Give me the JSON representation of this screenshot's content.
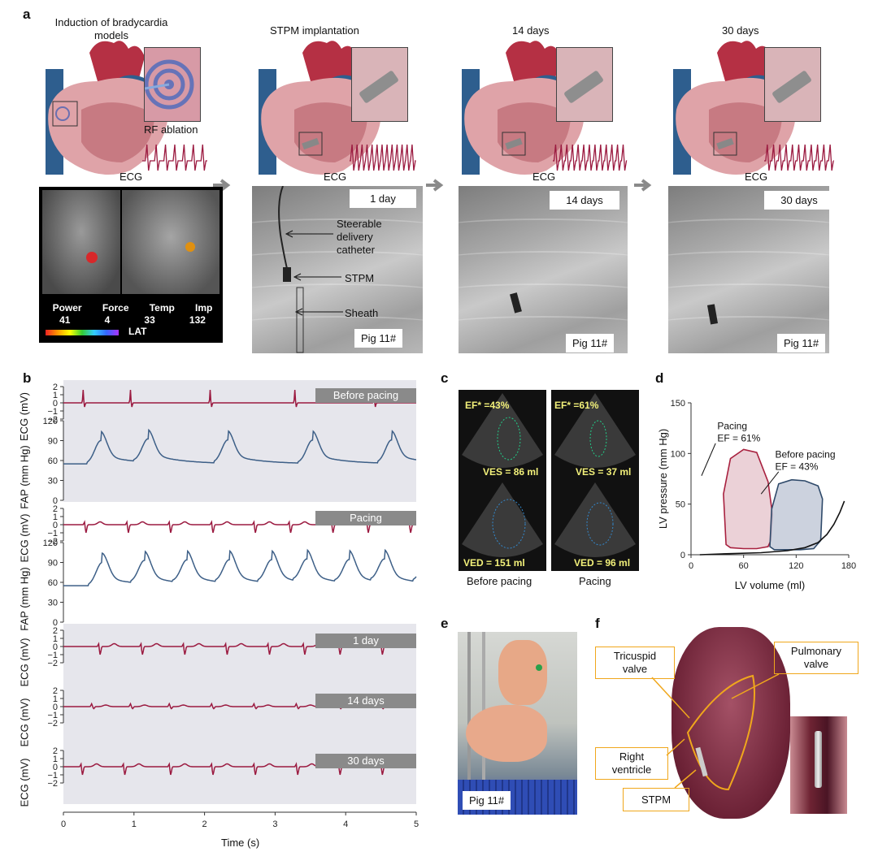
{
  "panel_a": {
    "label": "a",
    "stage_titles": [
      "Induction of bradycardia\nmodels",
      "STPM implantation",
      "14 days",
      "30 days"
    ],
    "rf_ablation": "RF ablation",
    "ecg_label": "ECG",
    "mapping_labels": [
      "Power",
      "Force",
      "Temp",
      "Imp"
    ],
    "mapping_values": [
      "41",
      "4",
      "33",
      "132"
    ],
    "lat_label": "LAT",
    "xray_tags": [
      "1 day",
      "14 days",
      "30 days"
    ],
    "pig_tag": "Pig 11#",
    "annotations": [
      "Steerable\ndelivery\ncatheter",
      "STPM",
      "Sheath"
    ]
  },
  "panel_b": {
    "label": "b",
    "condition_tags": [
      "Before pacing",
      "Pacing",
      "1 day",
      "14 days",
      "30 days"
    ],
    "ylabel_ecg": "ECG (mV)",
    "ylabel_fap": "FAP (mm Hg)",
    "xlabel": "Time (s)",
    "x_ticks": [
      "0",
      "1",
      "2",
      "3",
      "4",
      "5"
    ],
    "ecg_ticks": [
      "2",
      "1",
      "0",
      "−1",
      "−2"
    ],
    "fap_ticks": [
      "120",
      "90",
      "60",
      "30",
      "0"
    ],
    "colors": {
      "ecg": "#9b1a40",
      "fap": "#3d5f87",
      "shade": "#e6e6ec"
    }
  },
  "panel_c": {
    "label": "c",
    "before": {
      "ef": "EF* =43%",
      "ves": "VES = 86 ml",
      "ved": "VED = 151 ml",
      "caption": "Before pacing"
    },
    "pacing": {
      "ef": "EF* =61%",
      "ves": "VES = 37 ml",
      "ved": "VED = 96 ml",
      "caption": "Pacing"
    }
  },
  "panel_d": {
    "label": "d",
    "colors": {
      "pacing": "#a8213f",
      "pacing_fill": "#e8c9d0",
      "before": "#2f4a6a",
      "before_fill": "#c3cad8"
    }
  },
  "panel_e": {
    "label": "e",
    "pig_tag": "Pig 11#"
  },
  "panel_f": {
    "label": "f",
    "callouts": [
      "Tricuspid\nvalve",
      "Pulmonary\nvalve",
      "Right\nventricle",
      "STPM"
    ]
  },
  "chart_data": [
    {
      "type": "line",
      "title": "",
      "xlabel": "LV volume (ml)",
      "ylabel": "LV pressure (mm Hg)",
      "xlim": [
        0,
        180
      ],
      "ylim": [
        0,
        150
      ],
      "x_ticks": [
        0,
        60,
        120,
        180
      ],
      "y_ticks": [
        0,
        50,
        100,
        150
      ],
      "series": [
        {
          "name": "Pacing\nEF = 61%",
          "x": [
            40,
            37,
            45,
            60,
            75,
            88,
            93,
            91,
            88,
            75,
            60,
            45,
            40
          ],
          "y": [
            10,
            60,
            95,
            104,
            101,
            72,
            40,
            14,
            8,
            6,
            6,
            7,
            10
          ]
        },
        {
          "name": "Before pacing\nEF = 43%",
          "x": [
            90,
            92,
            100,
            115,
            130,
            145,
            150,
            148,
            140,
            125,
            110,
            95,
            90
          ],
          "y": [
            8,
            45,
            70,
            74,
            73,
            68,
            55,
            14,
            6,
            5,
            5,
            5,
            8
          ]
        },
        {
          "name": "",
          "x": [
            10,
            40,
            80,
            110,
            130,
            145,
            155,
            163,
            170,
            175
          ],
          "y": [
            0,
            1,
            2,
            4,
            7,
            12,
            20,
            30,
            42,
            53
          ]
        }
      ]
    }
  ]
}
